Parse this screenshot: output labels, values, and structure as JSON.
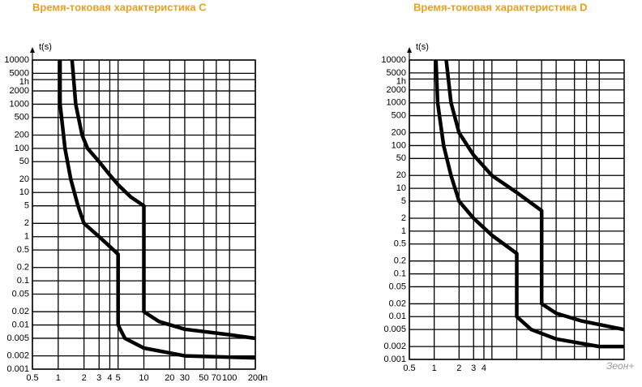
{
  "chart_data": [
    {
      "type": "line",
      "title": "Время-токовая характеристика C",
      "ylabel": "t(s)",
      "xlabel": "In",
      "log_x": true,
      "log_y": true,
      "grid": true,
      "xlim": [
        0.5,
        200
      ],
      "ylim": [
        0.001,
        10000
      ],
      "xticks": [
        0.5,
        1,
        2,
        3,
        4,
        5,
        10,
        20,
        30,
        50,
        70,
        100,
        200
      ],
      "yticks": [
        10000,
        5000,
        {
          "value": 3600,
          "label": "1h"
        },
        2000,
        1000,
        500,
        200,
        100,
        50,
        20,
        10,
        5,
        2,
        1,
        0.5,
        0.2,
        0.1,
        0.05,
        0.02,
        0.01,
        0.005,
        0.002,
        0.001
      ],
      "series": [
        {
          "color": "#000000",
          "x": [
            1.45,
            1.6,
            1.9,
            2.2,
            3,
            4,
            5,
            7,
            10,
            10,
            15,
            30,
            100,
            200
          ],
          "values": [
            10000,
            1000,
            200,
            100,
            50,
            25,
            15,
            8,
            5,
            0.02,
            0.012,
            0.008,
            0.006,
            0.005
          ]
        },
        {
          "color": "#000000",
          "x": [
            1.05,
            1.05,
            1.2,
            1.4,
            1.7,
            2,
            3,
            4,
            5,
            5,
            6,
            10,
            30,
            200
          ],
          "values": [
            10000,
            1000,
            100,
            20,
            5,
            2,
            1,
            0.6,
            0.4,
            0.01,
            0.005,
            0.003,
            0.002,
            0.0018
          ]
        }
      ]
    },
    {
      "type": "line",
      "title": "Время-токовая характеристика D",
      "ylabel": "t(s)",
      "log_x": true,
      "log_y": true,
      "grid": true,
      "xlim": [
        0.5,
        200
      ],
      "ylim": [
        0.001,
        10000
      ],
      "xticks": [
        0.5,
        1,
        2,
        3,
        4
      ],
      "xgrid": [
        5,
        10,
        20,
        30,
        50,
        70,
        100
      ],
      "yticks": [
        10000,
        5000,
        {
          "value": 3600,
          "label": "1h"
        },
        2000,
        1000,
        500,
        200,
        100,
        50,
        20,
        10,
        5,
        2,
        1,
        0.5,
        0.2,
        0.1,
        0.05,
        0.02,
        0.01,
        0.005,
        0.002,
        0.001
      ],
      "series": [
        {
          "color": "#000000",
          "x": [
            1.4,
            1.6,
            2,
            3,
            5,
            10,
            20,
            20,
            30,
            60,
            200
          ],
          "values": [
            10000,
            1000,
            200,
            60,
            20,
            8,
            3,
            0.02,
            0.012,
            0.008,
            0.005
          ]
        },
        {
          "color": "#000000",
          "x": [
            1.05,
            1.1,
            1.3,
            1.6,
            2,
            3,
            5,
            10,
            10,
            15,
            30,
            100,
            200
          ],
          "values": [
            10000,
            1000,
            100,
            20,
            5,
            2,
            0.8,
            0.3,
            0.01,
            0.005,
            0.003,
            0.002,
            0.002
          ]
        }
      ]
    }
  ],
  "watermark": "Зеон+"
}
